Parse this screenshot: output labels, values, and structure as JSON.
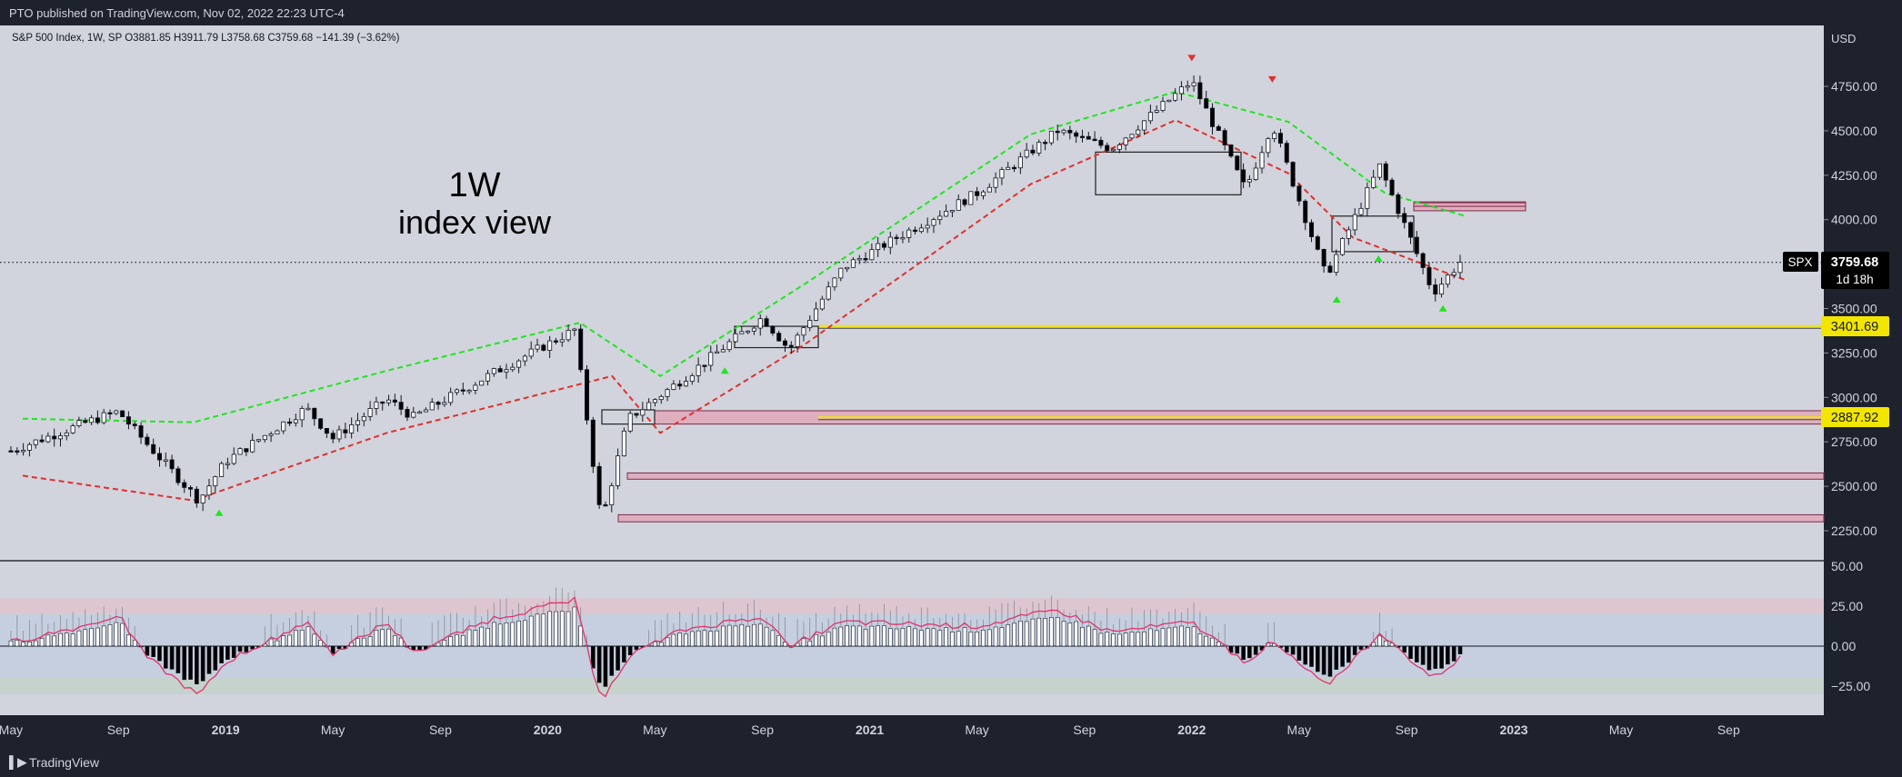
{
  "published": "PTO published on TradingView.com, Nov 02, 2022 22:23 UTC-4",
  "footer": {
    "brand": "TradingView"
  },
  "symbol_info": "S&P 500 Index, 1W, SP  O3881.85  H3911.79  L3758.68  C3759.68  −141.39 (−3.62%)",
  "annotation": {
    "line1": "1W",
    "line2": "index view"
  },
  "currency": "USD",
  "price_tag": {
    "symbol": "SPX",
    "price": "3759.68",
    "countdown": "1d 18h"
  },
  "levels": [
    "3401.69",
    "2887.92"
  ],
  "colors": {
    "bull": "#ffffff",
    "bear": "#000000",
    "green": "#22e422",
    "red": "#e03030",
    "level": "#f2e600",
    "zone_fill": "#e2a4b6",
    "osc_line": "#e0336a"
  },
  "chart_data": [
    {
      "type": "candlestick",
      "title": "S&P 500 Index, 1W",
      "x_axis": {
        "type": "date",
        "tick_labels": [
          "May",
          "Sep",
          "2019",
          "May",
          "Sep",
          "2020",
          "May",
          "Sep",
          "2021",
          "May",
          "Sep",
          "2022",
          "May",
          "Sep",
          "2023",
          "May",
          "Sep"
        ]
      },
      "y_axis": {
        "label": "USD",
        "range": [
          2100,
          4950
        ],
        "tick_labels": [
          "2250.00",
          "2500.00",
          "2750.00",
          "3000.00",
          "3250.00",
          "3500.00",
          "4000.00",
          "4250.00",
          "4500.00",
          "4750.00"
        ]
      },
      "price_path": [
        [
          "2018-05",
          2700
        ],
        [
          "2018-08",
          2870
        ],
        [
          "2018-09",
          2920
        ],
        [
          "2018-10",
          2750
        ],
        [
          "2018-12",
          2420
        ],
        [
          "2019-01",
          2640
        ],
        [
          "2019-04",
          2940
        ],
        [
          "2019-05",
          2770
        ],
        [
          "2019-07",
          2990
        ],
        [
          "2019-08",
          2890
        ],
        [
          "2019-11",
          3140
        ],
        [
          "2020-02",
          3380
        ],
        [
          "2020-03",
          2300
        ],
        [
          "2020-04",
          2880
        ],
        [
          "2020-06",
          3100
        ],
        [
          "2020-09",
          3450
        ],
        [
          "2020-10",
          3270
        ],
        [
          "2020-12",
          3730
        ],
        [
          "2021-05",
          4150
        ],
        [
          "2021-08",
          4500
        ],
        [
          "2021-10",
          4400
        ],
        [
          "2022-01",
          4780
        ],
        [
          "2022-03",
          4170
        ],
        [
          "2022-04",
          4540
        ],
        [
          "2022-06",
          3680
        ],
        [
          "2022-08",
          4300
        ],
        [
          "2022-10",
          3590
        ],
        [
          "2022-11",
          3760
        ]
      ],
      "series": [
        {
          "name": "",
          "values": [
            [
              2018.37,
              2560
            ],
            [
              2018.9,
              2420
            ],
            [
              2019.5,
              2800
            ],
            [
              2020.2,
              3120
            ],
            [
              2020.35,
              2800
            ],
            [
              2020.8,
              3300
            ],
            [
              2021.5,
              4200
            ],
            [
              2021.95,
              4560
            ],
            [
              2022.3,
              4260
            ],
            [
              2022.5,
              3900
            ],
            [
              2022.85,
              3660
            ]
          ]
        },
        {
          "name": "",
          "values": [
            [
              2018.37,
              2880
            ],
            [
              2018.9,
              2860
            ],
            [
              2019.5,
              3150
            ],
            [
              2020.1,
              3420
            ],
            [
              2020.35,
              3120
            ],
            [
              2020.8,
              3640
            ],
            [
              2021.5,
              4480
            ],
            [
              2021.95,
              4720
            ],
            [
              2022.3,
              4550
            ],
            [
              2022.6,
              4150
            ],
            [
              2022.85,
              4020
            ]
          ]
        }
      ],
      "horizontal_levels": [
        3401.69,
        2887.92
      ],
      "zones": [
        [
          4050,
          4100
        ],
        [
          2850,
          2925
        ],
        [
          2540,
          2575
        ],
        [
          2300,
          2340
        ],
        [
          4075,
          4095
        ]
      ],
      "swing_markers": {
        "up": [
          [
            2018.98,
            2420
          ],
          [
            2020.55,
            3220
          ],
          [
            2022.45,
            3620
          ],
          [
            2022.58,
            3850
          ],
          [
            2022.78,
            3570
          ]
        ],
        "down": [
          [
            2022.0,
            4840
          ],
          [
            2022.25,
            4720
          ]
        ]
      },
      "last_close": 3759.68,
      "current_price": 3759.68
    },
    {
      "type": "histogram",
      "title": "Oscillator",
      "y_axis": {
        "range": [
          -40,
          55
        ],
        "tick_labels": [
          "50.00",
          "25.00",
          "0.00",
          "−25.00"
        ]
      },
      "overbought_band": [
        20,
        30
      ],
      "oversold_band": [
        -30,
        -20
      ],
      "path": [
        [
          "2018-05",
          2
        ],
        [
          "2018-08",
          11
        ],
        [
          "2018-09",
          16
        ],
        [
          "2018-10",
          -5
        ],
        [
          "2018-12",
          -25
        ],
        [
          "2019-01",
          -8
        ],
        [
          "2019-04",
          12
        ],
        [
          "2019-05",
          -4
        ],
        [
          "2019-07",
          12
        ],
        [
          "2019-08",
          -3
        ],
        [
          "2019-11",
          14
        ],
        [
          "2020-02",
          23
        ],
        [
          "2020-03",
          -28
        ],
        [
          "2020-04",
          -5
        ],
        [
          "2020-06",
          8
        ],
        [
          "2020-09",
          15
        ],
        [
          "2020-10",
          0
        ],
        [
          "2020-12",
          12
        ],
        [
          "2021-05",
          10
        ],
        [
          "2021-08",
          18
        ],
        [
          "2021-10",
          7
        ],
        [
          "2022-01",
          12
        ],
        [
          "2022-03",
          -8
        ],
        [
          "2022-04",
          2
        ],
        [
          "2022-06",
          -20
        ],
        [
          "2022-08",
          6
        ],
        [
          "2022-10",
          -16
        ],
        [
          "2022-11",
          -6
        ]
      ],
      "last_value": -6
    }
  ]
}
